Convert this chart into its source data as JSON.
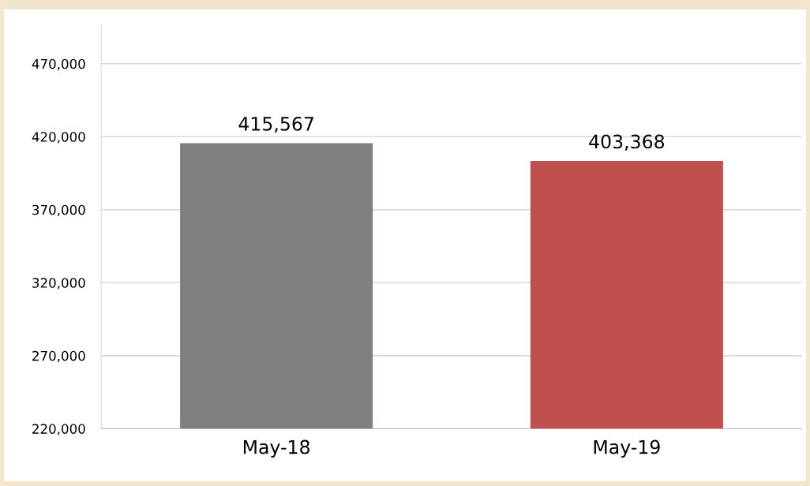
{
  "chart_data": {
    "type": "bar",
    "categories": [
      "May-18",
      "May-19"
    ],
    "values": [
      415567,
      403368
    ],
    "colors": [
      "#7f7f7f",
      "#c0504d"
    ],
    "ylim": [
      220000,
      497000
    ],
    "yticks": [
      {
        "value": 220000,
        "label": "220,000"
      },
      {
        "value": 270000,
        "label": "270,000"
      },
      {
        "value": 320000,
        "label": "320,000"
      },
      {
        "value": 370000,
        "label": "370,000"
      },
      {
        "value": 420000,
        "label": "420,000"
      },
      {
        "value": 470000,
        "label": "470,000"
      }
    ],
    "value_labels": [
      "415,567",
      "403,368"
    ],
    "grid": "y"
  }
}
